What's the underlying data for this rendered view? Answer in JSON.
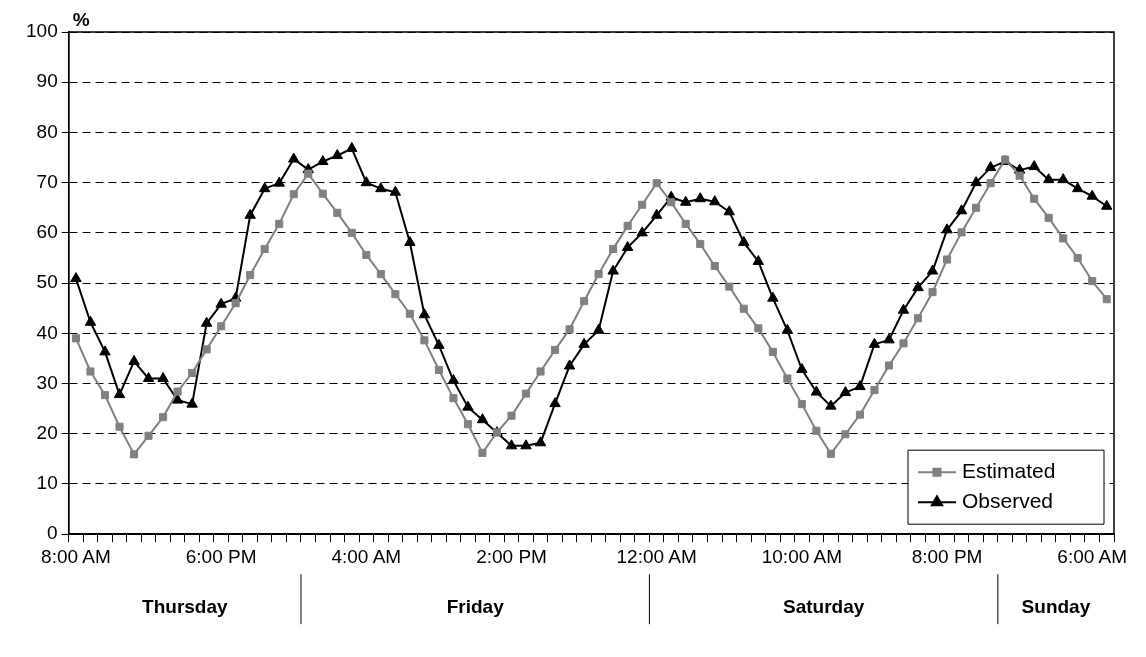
{
  "chart_data": {
    "type": "line",
    "ylabel": "%",
    "categories": [
      "8:00 AM",
      null,
      null,
      null,
      null,
      null,
      null,
      null,
      null,
      null,
      "6:00 PM",
      null,
      null,
      null,
      null,
      null,
      null,
      null,
      null,
      null,
      "4:00 AM",
      null,
      null,
      null,
      null,
      null,
      null,
      null,
      null,
      null,
      "2:00 PM",
      null,
      null,
      null,
      null,
      null,
      null,
      null,
      null,
      null,
      "12:00 AM",
      null,
      null,
      null,
      null,
      null,
      null,
      null,
      null,
      null,
      "10:00 AM",
      null,
      null,
      null,
      null,
      null,
      null,
      null,
      null,
      null,
      "8:00 PM",
      null,
      null,
      null,
      null,
      null,
      null,
      null,
      null,
      null,
      "6:00 AM",
      null
    ],
    "series": [
      {
        "name": "Estimated",
        "color": "#808080",
        "marker": "square",
        "values": [
          39,
          32.4,
          27.7,
          21.4,
          15.9,
          19.6,
          23.3,
          28.4,
          32.1,
          36.8,
          41.4,
          46,
          51.6,
          56.8,
          61.8,
          67.7,
          71.8,
          67.8,
          64,
          60,
          55.6,
          51.8,
          47.8,
          43.9,
          38.6,
          32.7,
          27.1,
          21.9,
          16.2,
          20.3,
          23.6,
          28,
          32.4,
          36.7,
          40.8,
          46.4,
          51.8,
          56.8,
          61.4,
          65.6,
          69.9,
          66.1,
          61.8,
          57.8,
          53.4,
          49.3,
          44.9,
          41,
          36.3,
          31,
          25.9,
          20.6,
          16,
          19.9,
          23.8,
          28.7,
          33.6,
          38,
          43,
          48.2,
          54.7,
          60.1,
          65,
          69.9,
          74.6,
          71.4,
          66.8,
          63,
          58.9,
          55,
          50.4,
          46.8
        ]
      },
      {
        "name": "Observed",
        "color": "#000000",
        "marker": "triangle",
        "values": [
          50.9,
          42.2,
          36.3,
          27.8,
          34.4,
          31,
          31,
          26.7,
          25.9,
          42,
          45.8,
          47,
          63.5,
          68.8,
          69.9,
          74.7,
          72.6,
          74.2,
          75.4,
          76.8,
          70,
          68.8,
          68.1,
          58.1,
          43.7,
          37.6,
          30.6,
          25.3,
          22.8,
          20.2,
          17.6,
          17.6,
          18.2,
          26,
          33.5,
          37.8,
          40.6,
          52.4,
          57.1,
          60,
          63.5,
          67.1,
          66.1,
          66.8,
          66.2,
          64.2,
          58.1,
          54.3,
          47,
          40.6,
          32.8,
          28.3,
          25.5,
          28.2,
          29.4,
          37.8,
          38.7,
          44.6,
          49.1,
          52.4,
          60.6,
          64.4,
          70,
          73,
          74.2,
          72.5,
          73.2,
          70.6,
          70.6,
          68.8,
          67.3,
          65.3
        ]
      }
    ],
    "ylim": [
      0,
      100
    ],
    "yticks": [
      0,
      10,
      20,
      30,
      40,
      50,
      60,
      70,
      80,
      90,
      100
    ],
    "grid": "y",
    "legend": "bottom right",
    "line_style": "solid",
    "annotations": [
      "Thursday",
      "Friday",
      "Saturday",
      "Sunday"
    ]
  }
}
